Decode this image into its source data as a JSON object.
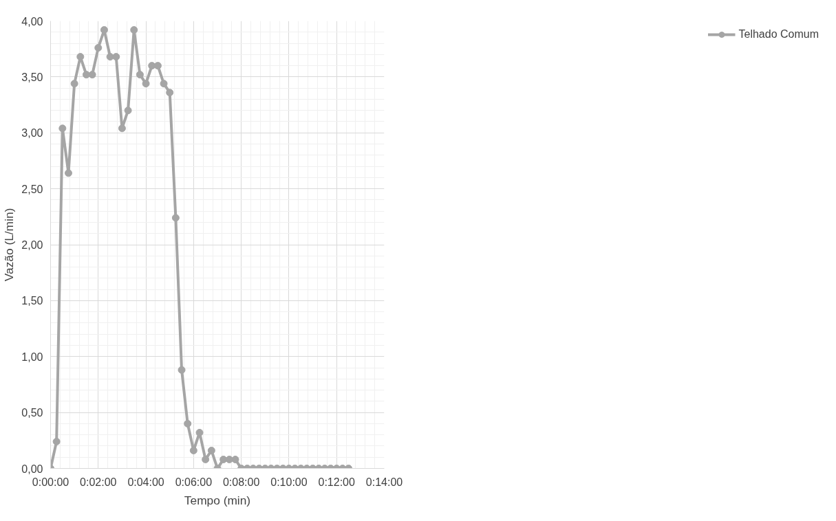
{
  "chart_data": {
    "type": "line",
    "xlabel": "Tempo (min)",
    "ylabel": "Vazão (L/min)",
    "x": [
      0,
      0.25,
      0.5,
      0.75,
      1,
      1.25,
      1.5,
      1.75,
      2,
      2.25,
      2.5,
      2.75,
      3,
      3.25,
      3.5,
      3.75,
      4,
      4.25,
      4.5,
      4.75,
      5,
      5.25,
      5.5,
      5.75,
      6,
      6.25,
      6.5,
      6.75,
      7,
      7.25,
      7.5,
      7.75,
      8,
      8.25,
      8.5,
      8.75,
      9,
      9.25,
      9.5,
      9.75,
      10,
      10.25,
      10.5,
      10.75,
      11,
      11.25,
      11.5,
      11.75,
      12,
      12.25,
      12.5
    ],
    "series": [
      {
        "name": "Telhado Comum",
        "color": "#a5a5a5",
        "values": [
          0,
          0.24,
          3.04,
          2.64,
          3.44,
          3.68,
          3.52,
          3.52,
          3.76,
          3.92,
          3.68,
          3.68,
          3.04,
          3.2,
          3.92,
          3.52,
          3.44,
          3.6,
          3.6,
          3.44,
          3.36,
          2.24,
          0.88,
          0.4,
          0.16,
          0.32,
          0.08,
          0.16,
          0,
          0.08,
          0.08,
          0.08,
          0,
          0,
          0,
          0,
          0,
          0,
          0,
          0,
          0,
          0,
          0,
          0,
          0,
          0,
          0,
          0,
          0,
          0,
          0
        ]
      }
    ],
    "xlim": [
      0,
      14
    ],
    "xticks": [
      {
        "value": 0,
        "label": "0:00:00"
      },
      {
        "value": 2,
        "label": "0:02:00"
      },
      {
        "value": 4,
        "label": "0:04:00"
      },
      {
        "value": 6,
        "label": "0:06:00"
      },
      {
        "value": 8,
        "label": "0:08:00"
      },
      {
        "value": 10,
        "label": "0:10:00"
      },
      {
        "value": 12,
        "label": "0:12:00"
      },
      {
        "value": 14,
        "label": "0:14:00"
      }
    ],
    "ylim": [
      0,
      4
    ],
    "yticks": [
      {
        "value": 0,
        "label": "0,00"
      },
      {
        "value": 0.5,
        "label": "0,50"
      },
      {
        "value": 1,
        "label": "1,00"
      },
      {
        "value": 1.5,
        "label": "1,50"
      },
      {
        "value": 2,
        "label": "2,00"
      },
      {
        "value": 2.5,
        "label": "2,50"
      },
      {
        "value": 3,
        "label": "3,00"
      },
      {
        "value": 3.5,
        "label": "3,50"
      },
      {
        "value": 4,
        "label": "4,00"
      }
    ],
    "grid": true,
    "legend": "right",
    "marker": "circle",
    "line_style": "solid"
  }
}
